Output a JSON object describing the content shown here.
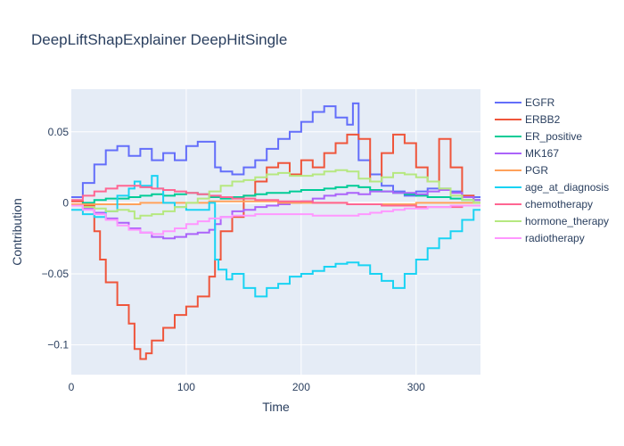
{
  "chart_data": {
    "type": "line",
    "line_shape": "step",
    "title": "DeepLiftShapExplainer DeepHitSingle",
    "xlabel": "Time",
    "ylabel": "Contribution",
    "xlim": [
      0,
      356
    ],
    "ylim": [
      -0.121,
      0.08
    ],
    "x_ticks": [
      0,
      100,
      200,
      300
    ],
    "y_ticks": [
      -0.1,
      -0.05,
      0,
      0.05
    ],
    "y_tick_labels": [
      "−0.1",
      "−0.05",
      "0",
      "0.05"
    ],
    "grid": true,
    "legend_position": "right",
    "background": "#e5ecf6",
    "series": [
      {
        "name": "EGFR",
        "color": "#636efa",
        "x": [
          0,
          10,
          20,
          30,
          40,
          50,
          60,
          70,
          80,
          90,
          100,
          110,
          120,
          125,
          130,
          140,
          150,
          160,
          170,
          180,
          190,
          200,
          210,
          220,
          230,
          240,
          245,
          250,
          260,
          270,
          280,
          290,
          300,
          310,
          320,
          330,
          340,
          350
        ],
        "y": [
          0.004,
          0.014,
          0.027,
          0.037,
          0.04,
          0.033,
          0.038,
          0.03,
          0.035,
          0.03,
          0.04,
          0.043,
          0.043,
          0.025,
          0.022,
          0.02,
          0.025,
          0.03,
          0.038,
          0.045,
          0.05,
          0.057,
          0.064,
          0.068,
          0.06,
          0.055,
          0.07,
          0.03,
          0.02,
          0.012,
          0.008,
          0.005,
          0.008,
          0.01,
          0.01,
          0.008,
          0.005,
          0.004
        ]
      },
      {
        "name": "ERBB2",
        "color": "#ef553b",
        "x": [
          0,
          10,
          20,
          25,
          30,
          40,
          50,
          55,
          60,
          65,
          70,
          80,
          90,
          100,
          110,
          120,
          125,
          130,
          140,
          150,
          160,
          170,
          180,
          190,
          200,
          210,
          220,
          230,
          240,
          250,
          260,
          270,
          280,
          290,
          300,
          310,
          320,
          330,
          340,
          350
        ],
        "y": [
          0.001,
          -0.002,
          -0.02,
          -0.04,
          -0.056,
          -0.072,
          -0.085,
          -0.103,
          -0.11,
          -0.106,
          -0.097,
          -0.088,
          -0.079,
          -0.073,
          -0.066,
          -0.052,
          -0.04,
          -0.02,
          -0.01,
          0.005,
          0.015,
          0.025,
          0.028,
          0.02,
          0.03,
          0.025,
          0.035,
          0.042,
          0.048,
          0.045,
          0.015,
          0.035,
          0.048,
          0.042,
          0.025,
          0.015,
          0.045,
          0.025,
          0.005,
          0.0
        ]
      },
      {
        "name": "ER_positive",
        "color": "#00cc96",
        "x": [
          0,
          10,
          20,
          30,
          40,
          50,
          60,
          70,
          80,
          90,
          100,
          110,
          120,
          130,
          140,
          150,
          160,
          170,
          180,
          190,
          200,
          210,
          220,
          230,
          240,
          250,
          260,
          270,
          280,
          290,
          300,
          310,
          320,
          330,
          340,
          350
        ],
        "y": [
          -0.002,
          0.0,
          0.002,
          0.003,
          0.003,
          0.004,
          0.005,
          0.006,
          0.005,
          0.006,
          0.007,
          0.006,
          0.004,
          0.003,
          0.004,
          0.005,
          0.006,
          0.007,
          0.007,
          0.008,
          0.009,
          0.009,
          0.01,
          0.011,
          0.012,
          0.011,
          0.009,
          0.008,
          0.007,
          0.006,
          0.005,
          0.004,
          0.004,
          0.003,
          0.002,
          0.002
        ]
      },
      {
        "name": "MK167",
        "color": "#ab63fa",
        "x": [
          0,
          10,
          20,
          30,
          40,
          50,
          60,
          70,
          80,
          90,
          100,
          110,
          120,
          125,
          130,
          140,
          150,
          160,
          170,
          180,
          190,
          200,
          210,
          220,
          230,
          240,
          250,
          260,
          270,
          280,
          290,
          300,
          310,
          320,
          330,
          340,
          350
        ],
        "y": [
          -0.002,
          -0.004,
          -0.007,
          -0.011,
          -0.014,
          -0.018,
          -0.021,
          -0.024,
          -0.025,
          -0.024,
          -0.022,
          -0.021,
          -0.019,
          -0.015,
          -0.01,
          -0.006,
          -0.005,
          -0.003,
          -0.002,
          -0.001,
          0.0,
          0.001,
          0.003,
          0.005,
          0.006,
          0.007,
          0.006,
          0.008,
          0.008,
          0.007,
          0.007,
          0.006,
          0.008,
          0.009,
          0.007,
          0.004,
          0.002
        ]
      },
      {
        "name": "PGR",
        "color": "#ffa15a",
        "x": [
          0,
          20,
          40,
          60,
          80,
          100,
          120,
          140,
          160,
          180,
          200,
          220,
          240,
          260,
          280,
          300,
          320,
          340
        ],
        "y": [
          -0.001,
          -0.001,
          -0.001,
          0.0,
          0.0,
          0.0,
          0.001,
          0.001,
          0.001,
          0.0,
          0.0,
          0.0,
          -0.001,
          -0.001,
          -0.001,
          0.0,
          0.0,
          0.0
        ]
      },
      {
        "name": "age_at_diagnosis",
        "color": "#19d3f3",
        "x": [
          0,
          10,
          20,
          30,
          40,
          50,
          55,
          60,
          70,
          75,
          80,
          90,
          100,
          110,
          120,
          125,
          128,
          135,
          140,
          150,
          160,
          170,
          180,
          190,
          200,
          210,
          220,
          230,
          240,
          250,
          260,
          270,
          280,
          290,
          300,
          310,
          320,
          330,
          340,
          350
        ],
        "y": [
          -0.005,
          -0.008,
          -0.01,
          -0.006,
          0.005,
          0.01,
          0.015,
          0.012,
          0.019,
          0.01,
          0.0,
          -0.003,
          -0.005,
          -0.005,
          0.0,
          -0.04,
          -0.047,
          -0.054,
          -0.05,
          -0.06,
          -0.066,
          -0.06,
          -0.057,
          -0.052,
          -0.05,
          -0.048,
          -0.045,
          -0.043,
          -0.042,
          -0.044,
          -0.05,
          -0.055,
          -0.06,
          -0.05,
          -0.04,
          -0.032,
          -0.025,
          -0.02,
          -0.012,
          -0.005
        ]
      },
      {
        "name": "chemotherapy",
        "color": "#ff6692",
        "x": [
          0,
          10,
          20,
          30,
          40,
          50,
          60,
          70,
          80,
          90,
          100,
          110,
          120,
          130,
          140,
          150,
          160,
          170,
          180,
          190,
          200,
          210,
          220,
          230,
          240,
          250,
          260,
          270,
          280,
          290,
          300,
          310,
          320,
          330,
          340,
          350
        ],
        "y": [
          0.002,
          0.005,
          0.008,
          0.01,
          0.012,
          0.012,
          0.011,
          0.01,
          0.009,
          0.008,
          0.007,
          0.006,
          0.005,
          0.004,
          0.003,
          0.003,
          0.002,
          0.002,
          0.001,
          0.001,
          0.001,
          0.0,
          0.0,
          0.0,
          -0.001,
          -0.001,
          -0.001,
          -0.002,
          -0.002,
          -0.002,
          -0.003,
          -0.003,
          -0.003,
          -0.003,
          -0.002,
          -0.002
        ]
      },
      {
        "name": "hormone_therapy",
        "color": "#b6e880",
        "x": [
          0,
          10,
          20,
          30,
          40,
          50,
          55,
          60,
          70,
          80,
          90,
          100,
          110,
          120,
          130,
          140,
          150,
          160,
          170,
          180,
          190,
          200,
          210,
          220,
          230,
          240,
          250,
          260,
          270,
          280,
          290,
          300,
          310,
          320,
          330,
          340,
          350
        ],
        "y": [
          -0.002,
          -0.003,
          -0.004,
          -0.006,
          -0.005,
          -0.006,
          -0.011,
          -0.009,
          -0.008,
          -0.006,
          -0.003,
          0.0,
          0.003,
          0.008,
          0.012,
          0.015,
          0.016,
          0.018,
          0.02,
          0.021,
          0.019,
          0.019,
          0.02,
          0.022,
          0.023,
          0.022,
          0.017,
          0.015,
          0.018,
          0.021,
          0.02,
          0.018,
          0.015,
          0.01,
          0.005,
          0.002,
          0.0
        ]
      },
      {
        "name": "radiotherapy",
        "color": "#ff97ff",
        "x": [
          0,
          10,
          20,
          30,
          40,
          50,
          60,
          70,
          80,
          90,
          100,
          110,
          120,
          130,
          140,
          150,
          160,
          170,
          180,
          190,
          200,
          210,
          220,
          230,
          240,
          250,
          260,
          270,
          280,
          290,
          300,
          310,
          320,
          330,
          340,
          350
        ],
        "y": [
          -0.002,
          -0.005,
          -0.008,
          -0.012,
          -0.016,
          -0.019,
          -0.021,
          -0.022,
          -0.02,
          -0.018,
          -0.015,
          -0.013,
          -0.011,
          -0.01,
          -0.009,
          -0.009,
          -0.008,
          -0.008,
          -0.008,
          -0.008,
          -0.008,
          -0.009,
          -0.009,
          -0.009,
          -0.009,
          -0.008,
          -0.007,
          -0.006,
          -0.005,
          -0.004,
          -0.004,
          -0.003,
          -0.003,
          -0.002,
          -0.002,
          -0.002
        ]
      }
    ]
  }
}
